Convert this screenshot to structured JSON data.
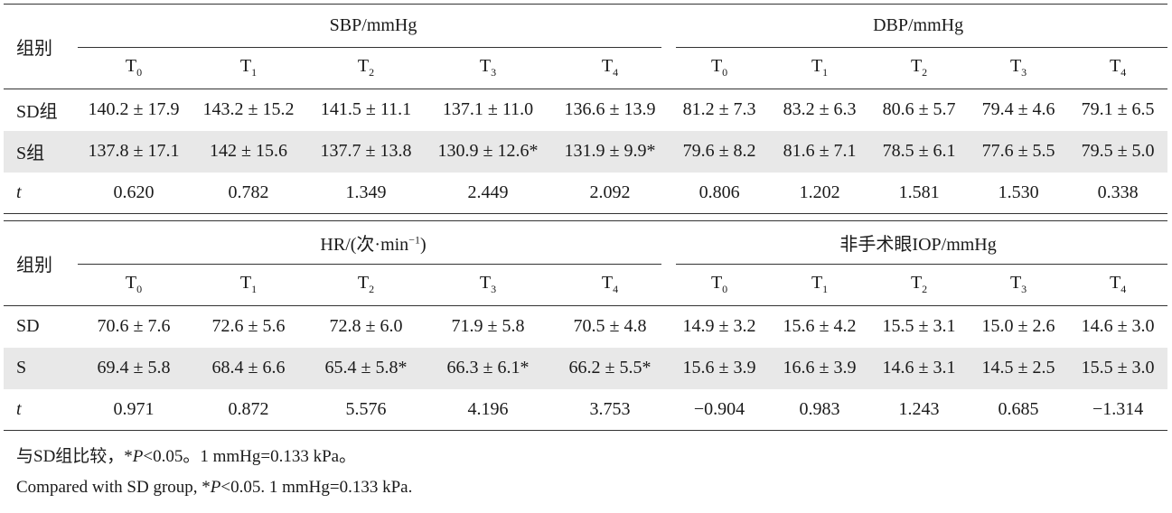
{
  "table1": {
    "group_label": "组别",
    "block1_title": "SBP/mmHg",
    "block2_title": "DBP/mmHg",
    "time_base": "T",
    "time_subs": [
      "0",
      "1",
      "2",
      "3",
      "4",
      "0",
      "1",
      "2",
      "3",
      "4"
    ],
    "rows": [
      {
        "label": "SD组",
        "cells": [
          "140.2 ± 17.9",
          "143.2 ± 15.2",
          "141.5 ± 11.1",
          "137.1 ± 11.0",
          "136.6 ± 13.9",
          "81.2 ± 7.3",
          "83.2 ± 6.3",
          "80.6 ± 5.7",
          "79.4 ± 4.6",
          "79.1 ± 6.5"
        ]
      },
      {
        "label": "S组",
        "cells": [
          "137.8 ± 17.1",
          "142 ± 15.6",
          "137.7 ± 13.8",
          "130.9 ± 12.6*",
          "131.9 ± 9.9*",
          "79.6 ± 8.2",
          "81.6 ± 7.1",
          "78.5 ± 6.1",
          "77.6 ± 5.5",
          "79.5 ± 5.0"
        ]
      },
      {
        "label": "t",
        "cells": [
          "0.620",
          "0.782",
          "1.349",
          "2.449",
          "2.092",
          "0.806",
          "1.202",
          "1.581",
          "1.530",
          "0.338"
        ]
      }
    ]
  },
  "table2": {
    "group_label": "组别",
    "block1_title_main": "HR/(次·min",
    "block1_title_sup": "−1",
    "block1_title_end": ")",
    "block2_title": "非手术眼IOP/mmHg",
    "time_base": "T",
    "time_subs": [
      "0",
      "1",
      "2",
      "3",
      "4",
      "0",
      "1",
      "2",
      "3",
      "4"
    ],
    "rows": [
      {
        "label": "SD",
        "cells": [
          "70.6 ± 7.6",
          "72.6 ± 5.6",
          "72.8 ± 6.0",
          "71.9 ± 5.8",
          "70.5 ± 4.8",
          "14.9 ± 3.2",
          "15.6 ± 4.2",
          "15.5 ± 3.1",
          "15.0 ± 2.6",
          "14.6 ± 3.0"
        ]
      },
      {
        "label": "S",
        "cells": [
          "69.4 ± 5.8",
          "68.4 ± 6.6",
          "65.4 ± 5.8*",
          "66.3 ± 6.1*",
          "66.2 ± 5.5*",
          "15.6 ± 3.9",
          "16.6 ± 3.9",
          "14.6 ± 3.1",
          "14.5 ± 2.5",
          "15.5 ± 3.0"
        ]
      },
      {
        "label": "t",
        "cells": [
          "0.971",
          "0.872",
          "5.576",
          "4.196",
          "3.753",
          "−0.904",
          "0.983",
          "1.243",
          "0.685",
          "−1.314"
        ]
      }
    ]
  },
  "notes": {
    "cn_prefix": "与SD组比较，*",
    "cn_p": "P",
    "cn_suffix": "<0.05。1 mmHg=0.133 kPa。",
    "en_prefix": "Compared with SD group, *",
    "en_p": "P",
    "en_suffix": "<0.05. 1 mmHg=0.133 kPa."
  }
}
